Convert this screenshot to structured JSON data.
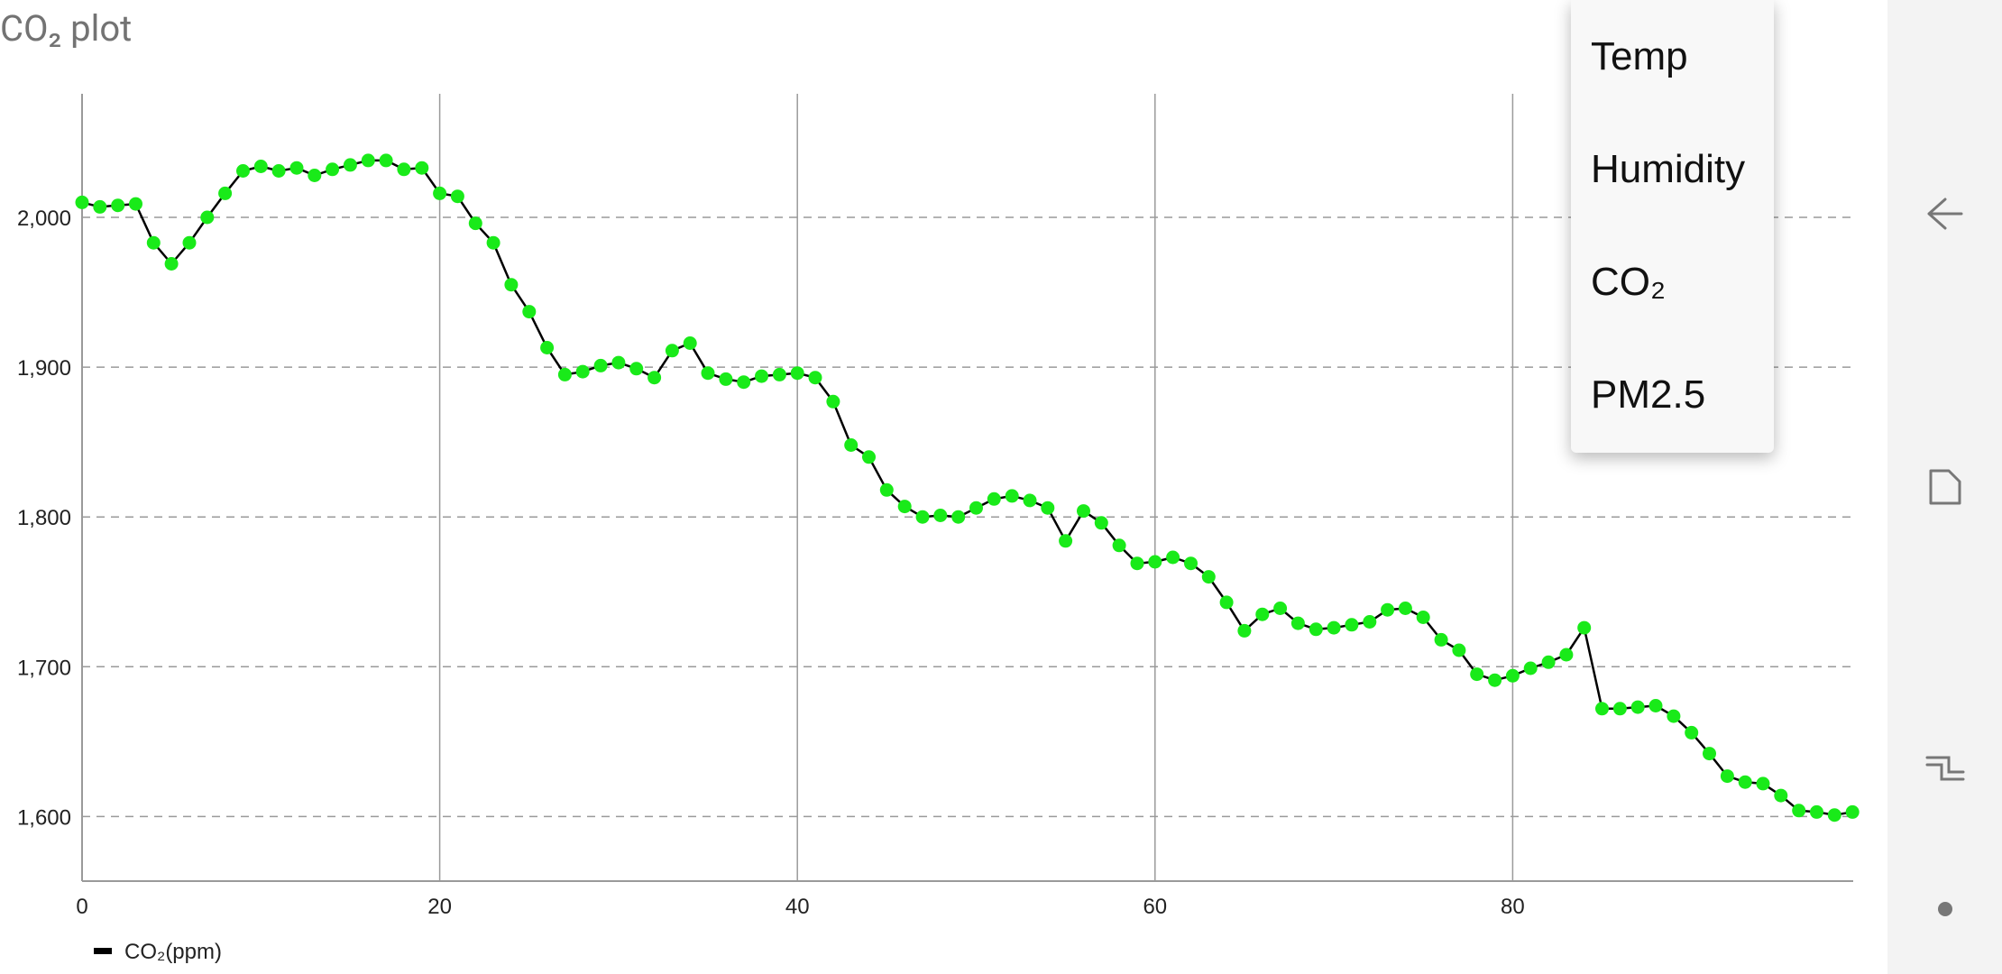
{
  "page": {
    "title": "CO₂ plot"
  },
  "menu": {
    "items": [
      {
        "label": "Temp"
      },
      {
        "label": "Humidity"
      },
      {
        "label": "CO₂"
      },
      {
        "label": "PM2.5"
      }
    ]
  },
  "navigation": {
    "icons": [
      "back-icon",
      "overview-icon",
      "recent-apps-icon",
      "home-dot-icon"
    ]
  },
  "colors": {
    "line": "#000000",
    "point": "#19ea19",
    "grid": "#9a9a9a"
  },
  "chart_data": {
    "type": "line",
    "title": "CO₂ plot",
    "xlabel": "",
    "ylabel": "",
    "x_ticks": [
      0,
      20,
      40,
      60,
      80
    ],
    "y_ticks": [
      1600,
      1700,
      1800,
      1900,
      2000
    ],
    "xlim": [
      0,
      99
    ],
    "ylim": [
      1557,
      2082
    ],
    "grid": {
      "x": "solid",
      "y": "dashed"
    },
    "legend": "bottom-left",
    "series": [
      {
        "name": "CO₂(ppm)",
        "x": [
          0,
          1,
          2,
          3,
          4,
          5,
          6,
          7,
          8,
          9,
          10,
          11,
          12,
          13,
          14,
          15,
          16,
          17,
          18,
          19,
          20,
          21,
          22,
          23,
          24,
          25,
          26,
          27,
          28,
          29,
          30,
          31,
          32,
          33,
          34,
          35,
          36,
          37,
          38,
          39,
          40,
          41,
          42,
          43,
          44,
          45,
          46,
          47,
          48,
          49,
          50,
          51,
          52,
          53,
          54,
          55,
          56,
          57,
          58,
          59,
          60,
          61,
          62,
          63,
          64,
          65,
          66,
          67,
          68,
          69,
          70,
          71,
          72,
          73,
          74,
          75,
          76,
          77,
          78,
          79,
          80,
          81,
          82,
          83,
          84,
          85,
          86,
          87,
          88,
          89,
          90,
          91,
          92,
          93,
          94,
          95,
          96,
          97,
          98,
          99
        ],
        "values": [
          2010,
          2007,
          2008,
          2009,
          1983,
          1969,
          1983,
          2000,
          2016,
          2031,
          2034,
          2031,
          2033,
          2028,
          2032,
          2035,
          2038,
          2038,
          2032,
          2033,
          2016,
          2014,
          1996,
          1983,
          1955,
          1937,
          1913,
          1895,
          1897,
          1901,
          1903,
          1899,
          1893,
          1911,
          1916,
          1896,
          1892,
          1890,
          1894,
          1895,
          1896,
          1893,
          1877,
          1848,
          1840,
          1818,
          1807,
          1800,
          1801,
          1800,
          1806,
          1812,
          1814,
          1811,
          1806,
          1784,
          1804,
          1796,
          1781,
          1769,
          1770,
          1773,
          1769,
          1760,
          1743,
          1724,
          1735,
          1739,
          1729,
          1725,
          1726,
          1728,
          1730,
          1738,
          1739,
          1733,
          1718,
          1711,
          1695,
          1691,
          1694,
          1699,
          1703,
          1708,
          1726,
          1672,
          1672,
          1673,
          1674,
          1667,
          1656,
          1642,
          1627,
          1623,
          1622,
          1614,
          1604,
          1603,
          1601,
          1603
        ]
      }
    ]
  }
}
